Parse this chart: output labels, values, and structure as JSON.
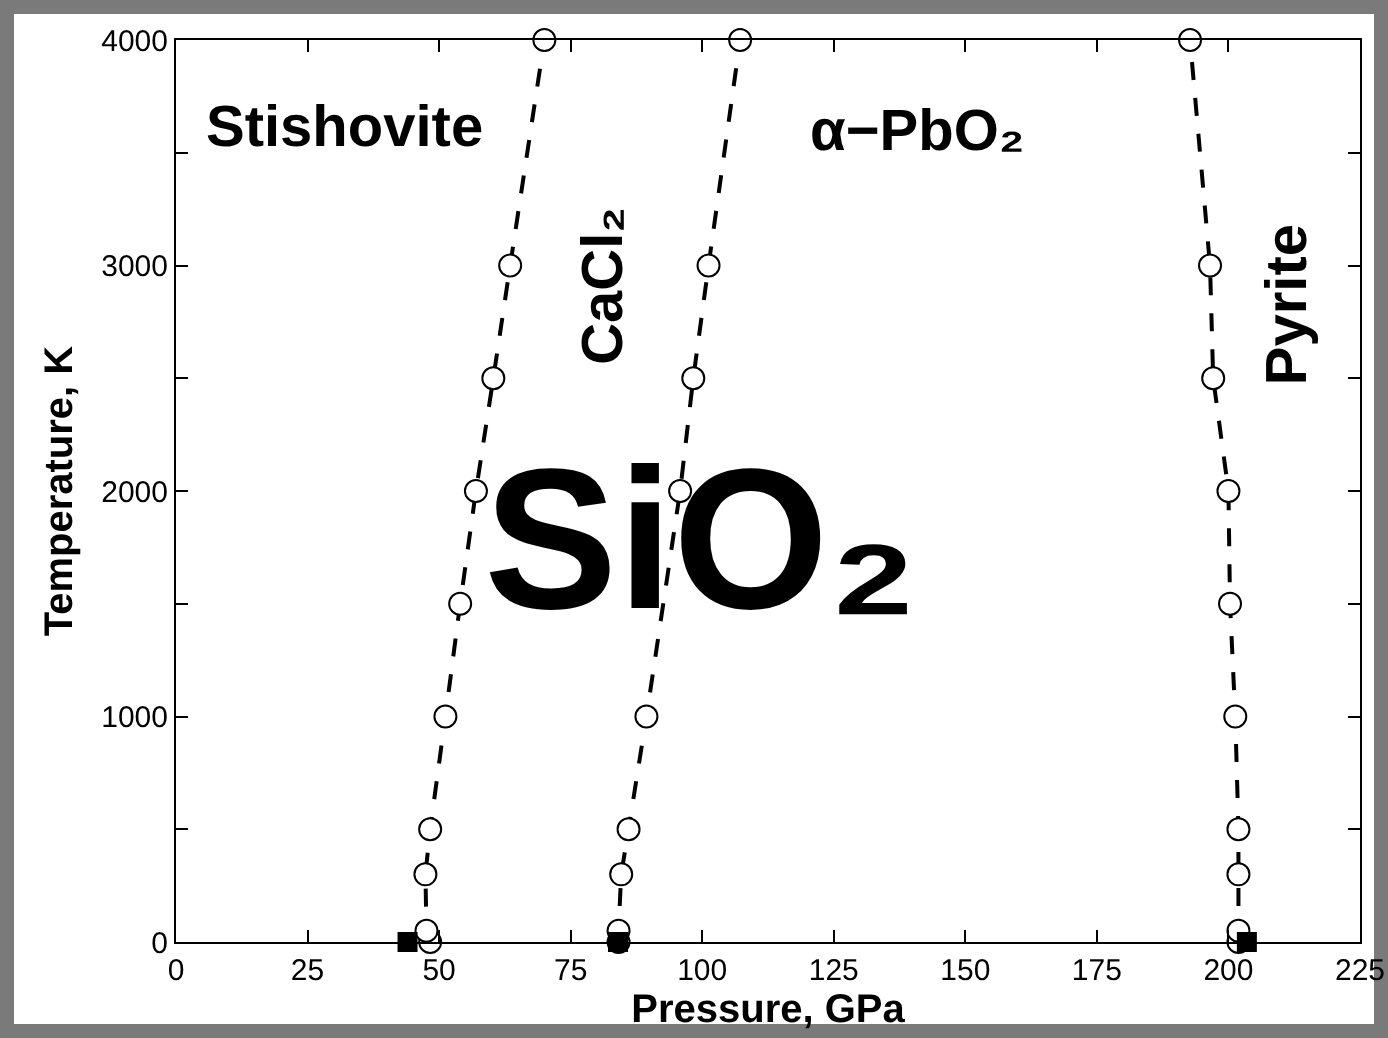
{
  "chart_data": {
    "type": "line",
    "xlabel": "Pressure, GPa",
    "ylabel": "Temperature, K",
    "xlim": [
      0,
      225
    ],
    "ylim": [
      0,
      4000
    ],
    "xticks": [
      0,
      25,
      50,
      75,
      100,
      125,
      150,
      175,
      200,
      225
    ],
    "yticks": [
      0,
      {
        "value": 500,
        "label": null
      },
      1000,
      {
        "value": 1500,
        "label": null
      },
      2000,
      {
        "value": 2500,
        "label": null
      },
      3000,
      {
        "value": 3500,
        "label": null
      },
      4000
    ],
    "marker": "circle",
    "line_style": "dashed",
    "series": [
      {
        "color": "#000000",
        "x": [
          48.3,
          47.6,
          47.4,
          48.3,
          51.2,
          54,
          57,
          60.3,
          63.5,
          70
        ],
        "values": [
          0,
          50,
          300,
          500,
          1000,
          1500,
          2000,
          2500,
          3000,
          4000
        ]
      },
      {
        "color": "#000000",
        "x": [
          84.1,
          84.1,
          84.6,
          86,
          89.4,
          95.8,
          98.3,
          101.2,
          107.2
        ],
        "values": [
          0,
          50,
          300,
          500,
          1000,
          2000,
          2500,
          3000,
          4000
        ]
      },
      {
        "color": "#000000",
        "x": [
          201.9,
          201.9,
          201.9,
          201.9,
          201.3,
          200.3,
          200,
          197.1,
          196.5,
          192.7
        ],
        "values": [
          0,
          50,
          300,
          500,
          1000,
          1500,
          2000,
          2500,
          3000,
          4000
        ]
      },
      {
        "type": "scatter",
        "marker": "square",
        "color": "#000000",
        "x": [
          44,
          84,
          203.5
        ],
        "values": [
          0,
          0,
          0
        ]
      }
    ],
    "annotations": [
      "Stishovite",
      "CaCl₂",
      "α−PbO₂",
      "Pyrite",
      "SiO₂"
    ]
  }
}
